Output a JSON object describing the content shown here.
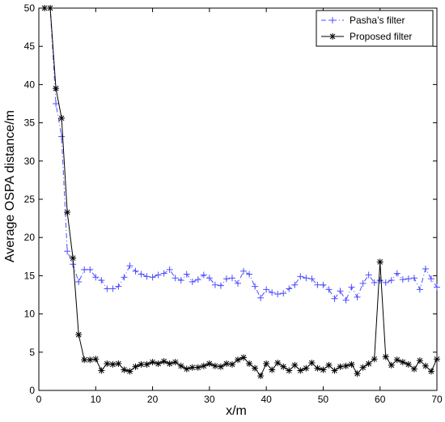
{
  "chart_data": {
    "type": "line",
    "xlabel": "x/m",
    "ylabel": "Average OSPA distance/m",
    "xlim": [
      0,
      70
    ],
    "ylim": [
      0,
      50
    ],
    "xticks": [
      0,
      10,
      20,
      30,
      40,
      50,
      60,
      70
    ],
    "yticks": [
      0,
      5,
      10,
      15,
      20,
      25,
      30,
      35,
      40,
      45,
      50
    ],
    "grid": false,
    "legend_position": "top-right",
    "x": [
      1,
      2,
      3,
      4,
      5,
      6,
      7,
      8,
      9,
      10,
      11,
      12,
      13,
      14,
      15,
      16,
      17,
      18,
      19,
      20,
      21,
      22,
      23,
      24,
      25,
      26,
      27,
      28,
      29,
      30,
      31,
      32,
      33,
      34,
      35,
      36,
      37,
      38,
      39,
      40,
      41,
      42,
      43,
      44,
      45,
      46,
      47,
      48,
      49,
      50,
      51,
      52,
      53,
      54,
      55,
      56,
      57,
      58,
      59,
      60,
      61,
      62,
      63,
      64,
      65,
      66,
      67,
      68,
      69,
      70
    ],
    "series": [
      {
        "name": "Pasha’s filter",
        "color": "#4d4dff",
        "line_style": "dashdot",
        "marker": "plus",
        "values": [
          50,
          50,
          37.5,
          33.2,
          18.2,
          16.5,
          14.2,
          15.8,
          15.8,
          14.8,
          14.4,
          13.3,
          13.3,
          13.6,
          14.8,
          16.3,
          15.6,
          15.2,
          14.9,
          14.8,
          15.1,
          15.3,
          15.8,
          14.7,
          14.4,
          15.2,
          14.2,
          14.5,
          15.1,
          14.7,
          13.8,
          13.7,
          14.6,
          14.7,
          14.0,
          15.6,
          15.2,
          13.6,
          12.1,
          13.2,
          12.8,
          12.6,
          12.7,
          13.3,
          13.8,
          14.9,
          14.7,
          14.6,
          13.8,
          13.8,
          13.2,
          12.0,
          13.0,
          11.8,
          13.5,
          12.2,
          14.0,
          15.1,
          14.1,
          14.4,
          14.1,
          14.4,
          15.3,
          14.5,
          14.6,
          14.7,
          13.2,
          15.9,
          14.6,
          13.5
        ]
      },
      {
        "name": "Proposed filter",
        "color": "#000000",
        "line_style": "solid",
        "marker": "star",
        "values": [
          50,
          50,
          39.5,
          35.6,
          23.3,
          17.3,
          7.3,
          4.0,
          4.0,
          4.1,
          2.6,
          3.5,
          3.4,
          3.5,
          2.7,
          2.5,
          3.1,
          3.4,
          3.4,
          3.7,
          3.5,
          3.8,
          3.5,
          3.7,
          3.2,
          2.8,
          3.0,
          3.0,
          3.2,
          3.5,
          3.2,
          3.1,
          3.5,
          3.4,
          4.0,
          4.3,
          3.5,
          2.9,
          1.9,
          3.5,
          2.7,
          3.6,
          3.1,
          2.6,
          3.3,
          2.6,
          2.9,
          3.6,
          2.9,
          2.7,
          3.3,
          2.6,
          3.1,
          3.2,
          3.4,
          2.2,
          3.0,
          3.5,
          4.1,
          16.8,
          4.4,
          3.3,
          4.0,
          3.7,
          3.4,
          2.8,
          3.9,
          3.2,
          2.5,
          4.1
        ]
      }
    ]
  }
}
